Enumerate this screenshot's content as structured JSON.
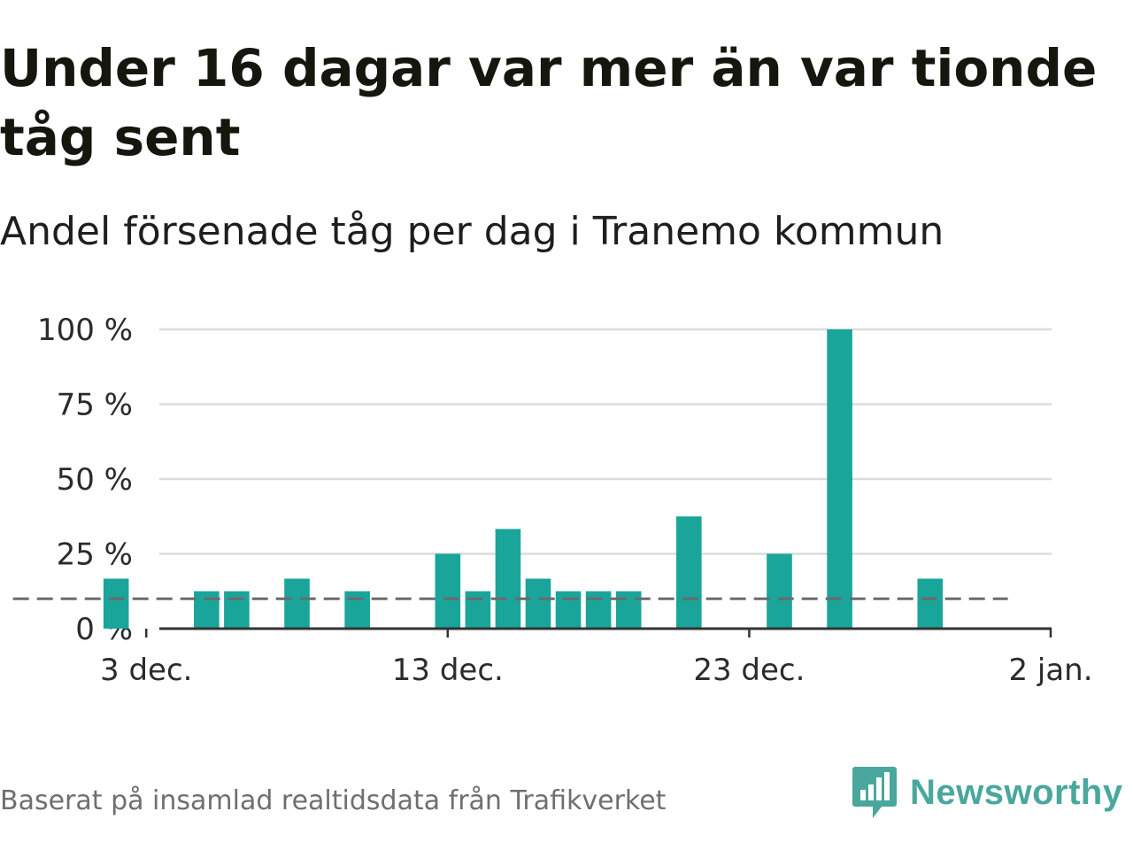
{
  "title": "Under 16 dagar var mer än var tionde tåg sent",
  "subtitle": "Andel försenade tåg per dag i Tranemo kommun",
  "source": "Baserat på insamlad realtidsdata från Trafikverket",
  "brand": {
    "name": "Newsworthy",
    "icon": "newsworthy-logo-icon",
    "color": "#4aa79d"
  },
  "chart_data": {
    "type": "bar",
    "title": "Andel försenade tåg per dag i Tranemo kommun",
    "xlabel": "",
    "ylabel": "",
    "unit": "%",
    "bar_color": "#1aa59a",
    "reference_line": {
      "value": 10,
      "style": "dashed",
      "color": "#6b6b6b"
    },
    "ylim": [
      0,
      100
    ],
    "yticks": [
      {
        "value": 0,
        "label": "0 %"
      },
      {
        "value": 25,
        "label": "25 %"
      },
      {
        "value": 50,
        "label": "50 %"
      },
      {
        "value": 75,
        "label": "75 %"
      },
      {
        "value": 100,
        "label": "100 %"
      }
    ],
    "xticks": [
      {
        "day": 3,
        "label": "3 dec."
      },
      {
        "day": 13,
        "label": "13 dec."
      },
      {
        "day": 23,
        "label": "23 dec."
      },
      {
        "day": 33,
        "label": "2 jan."
      }
    ],
    "xlim": [
      -1,
      33
    ],
    "day_origin": "1 dec.",
    "days": [
      -1,
      0,
      1,
      2,
      3,
      4,
      5,
      6,
      7,
      8,
      9,
      10,
      11,
      12,
      13,
      14,
      15,
      16,
      17,
      18,
      19,
      20,
      21,
      22,
      23,
      24,
      25,
      26,
      27,
      28,
      29,
      30,
      31,
      32
    ],
    "categories": [
      "29 nov.",
      "30 nov.",
      "1 dec.",
      "2 dec.",
      "3 dec.",
      "4 dec.",
      "5 dec.",
      "6 dec.",
      "7 dec.",
      "8 dec.",
      "9 dec.",
      "10 dec.",
      "11 dec.",
      "12 dec.",
      "13 dec.",
      "14 dec.",
      "15 dec.",
      "16 dec.",
      "17 dec.",
      "18 dec.",
      "19 dec.",
      "20 dec.",
      "21 dec.",
      "22 dec.",
      "23 dec.",
      "24 dec.",
      "25 dec.",
      "26 dec.",
      "27 dec.",
      "28 dec.",
      "29 dec.",
      "30 dec.",
      "31 dec.",
      "1 jan."
    ],
    "values": [
      null,
      null,
      null,
      16.7,
      null,
      null,
      12.5,
      12.5,
      null,
      16.7,
      null,
      12.5,
      null,
      null,
      25,
      12.5,
      33.3,
      16.7,
      12.5,
      12.5,
      12.5,
      null,
      37.5,
      null,
      null,
      25,
      null,
      100,
      null,
      null,
      16.7,
      null,
      null,
      null
    ]
  }
}
